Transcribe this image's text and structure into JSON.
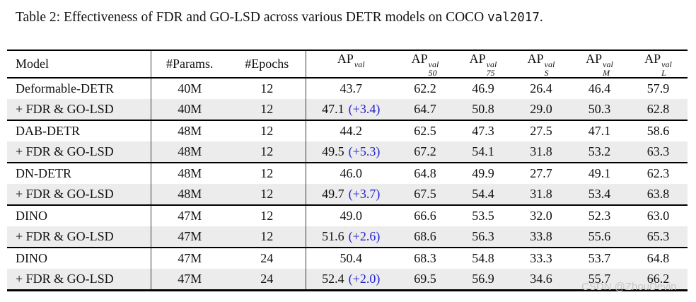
{
  "caption": {
    "prefix": "Table 2: Effectiveness of FDR and GO-LSD across various DETR models on COCO ",
    "code": "val2017",
    "suffix": "."
  },
  "watermark": "CSDN @ZhouDevin",
  "colors": {
    "delta_blue": "#2323cc",
    "highlight_row_bg": "#ececec",
    "rule_black": "#000000",
    "watermark_gray": "#c7c7cc"
  },
  "table": {
    "header": {
      "model": "Model",
      "params": "#Params.",
      "epochs": "#Epochs",
      "ap_columns": [
        {
          "base": "AP",
          "sup": "val",
          "sub": ""
        },
        {
          "base": "AP",
          "sup": "val",
          "sub": "50"
        },
        {
          "base": "AP",
          "sup": "val",
          "sub": "75"
        },
        {
          "base": "AP",
          "sup": "val",
          "sub": "S"
        },
        {
          "base": "AP",
          "sup": "val",
          "sub": "M"
        },
        {
          "base": "AP",
          "sup": "val",
          "sub": "L"
        }
      ]
    },
    "rows": [
      {
        "model": "Deformable-DETR",
        "params": "40M",
        "epochs": "12",
        "ap": "43.7",
        "delta": "",
        "ap50": "62.2",
        "ap75": "46.9",
        "ap_s": "26.4",
        "ap_m": "46.4",
        "ap_l": "57.9",
        "highlight": false
      },
      {
        "model": "+ FDR & GO-LSD",
        "params": "40M",
        "epochs": "12",
        "ap": "47.1",
        "delta": "(+3.4)",
        "ap50": "64.7",
        "ap75": "50.8",
        "ap_s": "29.0",
        "ap_m": "50.3",
        "ap_l": "62.8",
        "highlight": true
      },
      {
        "model": "DAB-DETR",
        "params": "48M",
        "epochs": "12",
        "ap": "44.2",
        "delta": "",
        "ap50": "62.5",
        "ap75": "47.3",
        "ap_s": "27.5",
        "ap_m": "47.1",
        "ap_l": "58.6",
        "highlight": false
      },
      {
        "model": "+ FDR & GO-LSD",
        "params": "48M",
        "epochs": "12",
        "ap": "49.5",
        "delta": "(+5.3)",
        "ap50": "67.2",
        "ap75": "54.1",
        "ap_s": "31.8",
        "ap_m": "53.2",
        "ap_l": "63.3",
        "highlight": true
      },
      {
        "model": "DN-DETR",
        "params": "48M",
        "epochs": "12",
        "ap": "46.0",
        "delta": "",
        "ap50": "64.8",
        "ap75": "49.9",
        "ap_s": "27.7",
        "ap_m": "49.1",
        "ap_l": "62.3",
        "highlight": false
      },
      {
        "model": "+ FDR & GO-LSD",
        "params": "48M",
        "epochs": "12",
        "ap": "49.7",
        "delta": "(+3.7)",
        "ap50": "67.5",
        "ap75": "54.4",
        "ap_s": "31.8",
        "ap_m": "53.4",
        "ap_l": "63.8",
        "highlight": true
      },
      {
        "model": "DINO",
        "params": "47M",
        "epochs": "12",
        "ap": "49.0",
        "delta": "",
        "ap50": "66.6",
        "ap75": "53.5",
        "ap_s": "32.0",
        "ap_m": "52.3",
        "ap_l": "63.0",
        "highlight": false
      },
      {
        "model": "+ FDR & GO-LSD",
        "params": "47M",
        "epochs": "12",
        "ap": "51.6",
        "delta": "(+2.6)",
        "ap50": "68.6",
        "ap75": "56.3",
        "ap_s": "33.8",
        "ap_m": "55.6",
        "ap_l": "65.3",
        "highlight": true
      },
      {
        "model": "DINO",
        "params": "47M",
        "epochs": "24",
        "ap": "50.4",
        "delta": "",
        "ap50": "68.3",
        "ap75": "54.8",
        "ap_s": "33.3",
        "ap_m": "53.7",
        "ap_l": "64.8",
        "highlight": false
      },
      {
        "model": "+ FDR & GO-LSD",
        "params": "47M",
        "epochs": "24",
        "ap": "52.4",
        "delta": "(+2.0)",
        "ap50": "69.5",
        "ap75": "56.9",
        "ap_s": "34.6",
        "ap_m": "55.7",
        "ap_l": "66.2",
        "highlight": true
      }
    ]
  }
}
